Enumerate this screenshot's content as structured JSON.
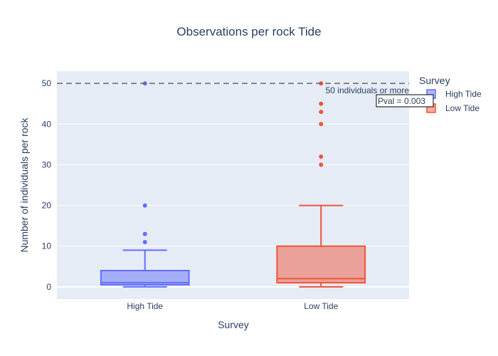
{
  "chart_data": {
    "type": "box",
    "title": "Observations per rock Tide",
    "xlabel": "Survey",
    "ylabel": "Number of individuals per rock",
    "categories": [
      "High Tide",
      "Low Tide"
    ],
    "ylim": [
      -3,
      53
    ],
    "y_ticks": [
      0,
      10,
      20,
      30,
      40,
      50
    ],
    "grid": true,
    "legend": {
      "title": "Survey",
      "placement": "top-right",
      "entries": [
        "High Tide",
        "Low Tide"
      ]
    },
    "series": [
      {
        "name": "High Tide",
        "color": "#636efa",
        "fill": "rgba(99,110,250,0.5)",
        "min": 0,
        "q1": 0.5,
        "median": 1,
        "q3": 4,
        "max": 9,
        "outliers": [
          11,
          13,
          20,
          50
        ]
      },
      {
        "name": "Low Tide",
        "color": "#ef553b",
        "fill": "rgba(239,85,59,0.5)",
        "min": 0,
        "q1": 1,
        "median": 2,
        "q3": 10,
        "max": 20,
        "outliers": [
          30,
          32,
          40,
          43,
          45,
          50
        ]
      }
    ],
    "reference_line": {
      "y": 50,
      "label": "50 individuals or more",
      "style": "dashed"
    },
    "annotation": {
      "text": "Pval = 0.003"
    }
  }
}
